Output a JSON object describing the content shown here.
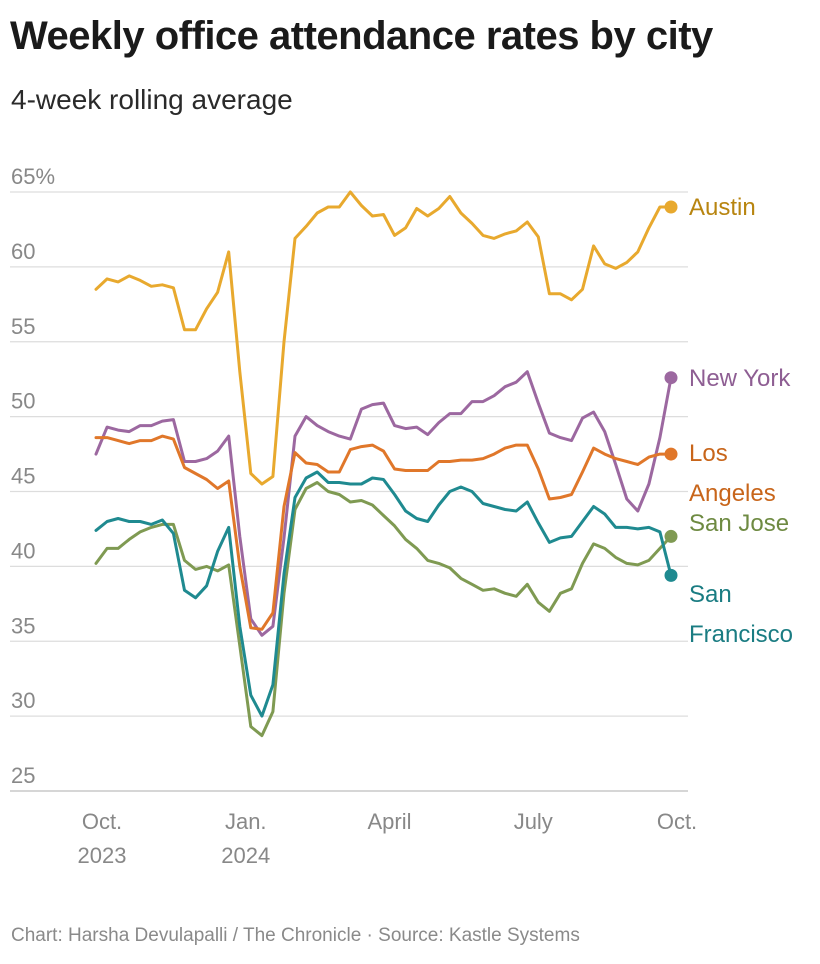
{
  "header": {
    "title": "Weekly office attendance rates by city",
    "subtitle": "4-week rolling average"
  },
  "footer": {
    "credit": "Chart: Harsha Devulapalli / The Chronicle · Source: Kastle Systems"
  },
  "chart_data": {
    "type": "line",
    "title": "Weekly office attendance rates by city",
    "subtitle": "4-week rolling average",
    "xlabel": "",
    "ylabel": "",
    "ylim": [
      25,
      65
    ],
    "y_ticks": [
      25,
      30,
      35,
      40,
      45,
      50,
      55,
      60,
      65
    ],
    "y_tick_labels": [
      "25",
      "30",
      "35",
      "40",
      "45",
      "50",
      "55",
      "60",
      "65%"
    ],
    "x_ticks": [
      {
        "week": 0,
        "label": [
          "Oct.",
          "2023"
        ]
      },
      {
        "week": 13,
        "label": [
          "Jan.",
          "2024"
        ]
      },
      {
        "week": 26,
        "label": [
          "April"
        ]
      },
      {
        "week": 39,
        "label": [
          "July"
        ]
      },
      {
        "week": 52,
        "label": [
          "Oct."
        ]
      }
    ],
    "grid": true,
    "x_weeks": [
      0,
      1,
      2,
      3,
      4,
      5,
      6,
      7,
      8,
      9,
      10,
      11,
      12,
      13,
      14,
      15,
      16,
      17,
      18,
      19,
      20,
      21,
      22,
      23,
      24,
      25,
      26,
      27,
      28,
      29,
      30,
      31,
      32,
      33,
      34,
      35,
      36,
      37,
      38,
      39,
      40,
      41,
      42,
      43,
      44,
      45,
      46,
      47,
      48,
      49,
      50,
      51,
      52
    ],
    "series": [
      {
        "name": "Austin",
        "color": "#e8a92e",
        "label_color": "#b88510",
        "label_lines": [
          "Austin"
        ],
        "values": [
          58.5,
          59.2,
          59.0,
          59.4,
          59.1,
          58.7,
          58.8,
          58.6,
          55.8,
          55.8,
          57.2,
          58.3,
          61.0,
          53.0,
          46.2,
          45.5,
          46.0,
          55.0,
          61.9,
          62.7,
          63.6,
          64.0,
          64.0,
          65.0,
          64.1,
          63.4,
          63.5,
          62.1,
          62.6,
          63.9,
          63.4,
          63.9,
          64.7,
          63.6,
          62.9,
          62.1,
          61.9,
          62.2,
          62.4,
          63.0,
          62.0,
          58.2,
          58.2,
          57.8,
          58.5,
          61.4,
          60.2,
          59.9,
          60.3,
          61.0,
          62.6,
          64.0,
          64.0
        ]
      },
      {
        "name": "New York",
        "color": "#9c68a0",
        "label_color": "#8e5e93",
        "label_lines": [
          "New York"
        ],
        "values": [
          47.5,
          49.3,
          49.1,
          49.0,
          49.4,
          49.4,
          49.7,
          49.8,
          47.0,
          47.0,
          47.2,
          47.7,
          48.7,
          42.0,
          36.5,
          35.4,
          36.0,
          41.9,
          48.7,
          50.0,
          49.4,
          49.0,
          48.7,
          48.5,
          50.5,
          50.8,
          50.9,
          49.4,
          49.2,
          49.3,
          48.8,
          49.6,
          50.2,
          50.2,
          51.0,
          51.0,
          51.4,
          52.0,
          52.3,
          53.0,
          50.9,
          48.9,
          48.6,
          48.4,
          49.9,
          50.3,
          49.0,
          46.8,
          44.5,
          43.7,
          45.5,
          48.6,
          52.6
        ]
      },
      {
        "name": "Los Angeles",
        "color": "#e0772a",
        "label_color": "#c8651a",
        "label_lines": [
          "Los",
          "Angeles"
        ],
        "values": [
          48.6,
          48.6,
          48.4,
          48.2,
          48.4,
          48.4,
          48.7,
          48.5,
          46.6,
          46.2,
          45.8,
          45.2,
          45.7,
          40.0,
          35.9,
          35.8,
          36.9,
          44.0,
          47.6,
          46.9,
          46.8,
          46.3,
          46.3,
          47.8,
          48.0,
          48.1,
          47.7,
          46.5,
          46.4,
          46.4,
          46.4,
          47.0,
          47.0,
          47.1,
          47.1,
          47.2,
          47.5,
          47.9,
          48.1,
          48.1,
          46.5,
          44.5,
          44.6,
          44.8,
          46.3,
          47.9,
          47.5,
          47.2,
          47.0,
          46.8,
          47.3,
          47.5,
          47.5
        ]
      },
      {
        "name": "San Jose",
        "color": "#7f9a52",
        "label_color": "#6e8a42",
        "label_lines": [
          "San Jose"
        ],
        "values": [
          40.2,
          41.2,
          41.2,
          41.8,
          42.3,
          42.6,
          42.8,
          42.8,
          40.4,
          39.8,
          40.0,
          39.7,
          40.1,
          34.7,
          29.3,
          28.7,
          30.3,
          38.2,
          43.8,
          45.2,
          45.6,
          45.0,
          44.8,
          44.3,
          44.4,
          44.1,
          43.4,
          42.7,
          41.8,
          41.2,
          40.4,
          40.2,
          39.9,
          39.2,
          38.8,
          38.4,
          38.5,
          38.2,
          38.0,
          38.8,
          37.6,
          37.0,
          38.2,
          38.5,
          40.2,
          41.5,
          41.2,
          40.6,
          40.2,
          40.1,
          40.4,
          41.2,
          42.0
        ]
      },
      {
        "name": "San Francisco",
        "color": "#1f8a90",
        "label_color": "#1a7c82",
        "label_lines": [
          "San",
          "Francisco"
        ],
        "values": [
          42.4,
          43.0,
          43.2,
          43.0,
          43.0,
          42.8,
          43.1,
          42.2,
          38.4,
          37.9,
          38.7,
          41.0,
          42.6,
          36.0,
          31.4,
          30.0,
          32.1,
          39.5,
          44.6,
          45.9,
          46.3,
          45.6,
          45.6,
          45.5,
          45.5,
          45.9,
          45.8,
          44.8,
          43.7,
          43.2,
          43.0,
          44.1,
          45.0,
          45.3,
          45.0,
          44.2,
          44.0,
          43.8,
          43.7,
          44.3,
          42.9,
          41.6,
          41.9,
          42.0,
          43.0,
          44.0,
          43.5,
          42.6,
          42.6,
          42.5,
          42.6,
          42.3,
          39.4
        ]
      }
    ]
  }
}
